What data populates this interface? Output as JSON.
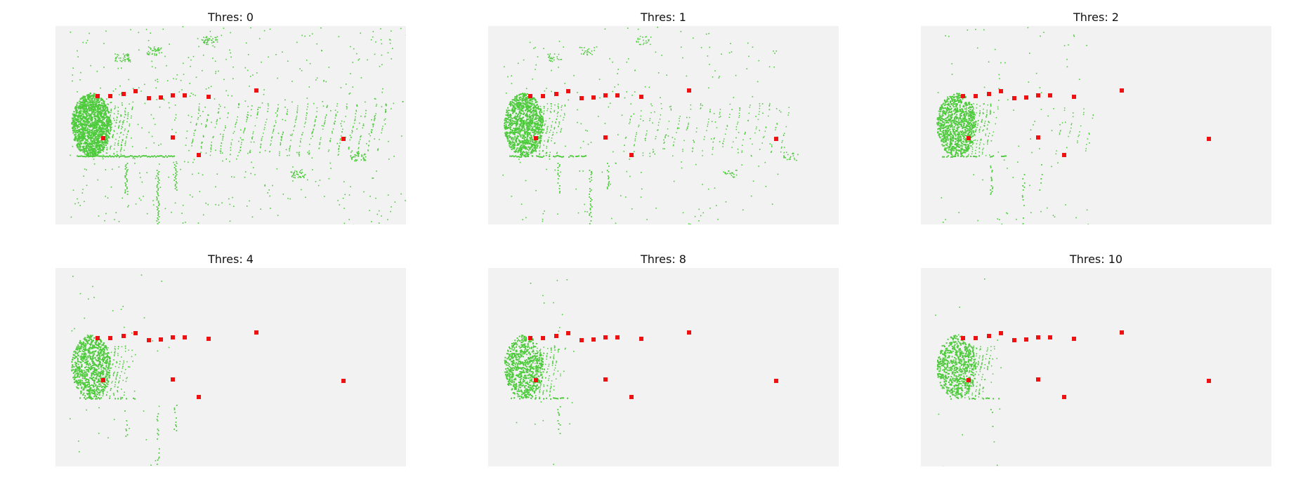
{
  "figure": {
    "background": "#ffffff",
    "plot_background": "#f2f2f2",
    "point_color": "#4ecb3c",
    "marker_color": "#ee1111"
  },
  "chart_data": [
    {
      "type": "scatter",
      "title": "Thres: 0",
      "threshold": 0,
      "axes": "off",
      "grid": false,
      "series": [
        {
          "values": "green lidar point cloud",
          "density": 1.0,
          "range": 1.0,
          "far_clusters": true
        },
        {
          "values": "red object markers",
          "x": [
            60,
            78,
            97,
            114,
            133,
            150,
            167,
            184,
            218,
            286,
            68,
            167,
            204,
            410
          ],
          "y": [
            100,
            100,
            97,
            93,
            103,
            102,
            99,
            99,
            101,
            92,
            160,
            159,
            184,
            161
          ]
        }
      ]
    },
    {
      "type": "scatter",
      "title": "Thres: 1",
      "threshold": 1,
      "axes": "off",
      "grid": false,
      "series": [
        {
          "values": "green lidar point cloud",
          "density": 0.55,
          "range": 0.85,
          "far_clusters": true
        },
        {
          "values": "red object markers",
          "x": [
            60,
            78,
            97,
            114,
            133,
            150,
            167,
            184,
            218,
            286,
            68,
            167,
            204,
            410
          ],
          "y": [
            100,
            100,
            97,
            93,
            103,
            102,
            99,
            99,
            101,
            92,
            160,
            159,
            184,
            161
          ]
        }
      ]
    },
    {
      "type": "scatter",
      "title": "Thres: 2",
      "threshold": 2,
      "axes": "off",
      "grid": false,
      "series": [
        {
          "values": "green lidar point cloud",
          "density": 0.4,
          "range": 0.45,
          "far_clusters": false
        },
        {
          "values": "red object markers",
          "x": [
            60,
            78,
            97,
            114,
            133,
            150,
            167,
            184,
            218,
            286,
            68,
            167,
            204,
            410
          ],
          "y": [
            100,
            100,
            97,
            93,
            103,
            102,
            99,
            99,
            101,
            92,
            160,
            159,
            184,
            161
          ]
        }
      ]
    },
    {
      "type": "scatter",
      "title": "Thres: 4",
      "threshold": 4,
      "axes": "off",
      "grid": false,
      "series": [
        {
          "values": "green lidar point cloud",
          "density": 0.3,
          "range": 0.28,
          "far_clusters": false
        },
        {
          "values": "red object markers",
          "x": [
            60,
            78,
            97,
            114,
            133,
            150,
            167,
            184,
            218,
            286,
            68,
            167,
            204,
            410
          ],
          "y": [
            100,
            100,
            97,
            93,
            103,
            102,
            99,
            99,
            101,
            92,
            160,
            159,
            184,
            161
          ]
        }
      ]
    },
    {
      "type": "scatter",
      "title": "Thres: 8",
      "threshold": 8,
      "axes": "off",
      "grid": false,
      "series": [
        {
          "values": "green lidar point cloud",
          "density": 0.2,
          "range": 0.2,
          "far_clusters": false
        },
        {
          "values": "red object markers",
          "x": [
            60,
            78,
            97,
            114,
            133,
            150,
            167,
            184,
            218,
            286,
            68,
            167,
            204,
            410
          ],
          "y": [
            100,
            100,
            97,
            93,
            103,
            102,
            99,
            99,
            101,
            92,
            160,
            159,
            184,
            161
          ]
        }
      ]
    },
    {
      "type": "scatter",
      "title": "Thres: 10",
      "threshold": 10,
      "axes": "off",
      "grid": false,
      "series": [
        {
          "values": "green lidar point cloud",
          "density": 0.15,
          "range": 0.18,
          "far_clusters": false
        },
        {
          "values": "red object markers",
          "x": [
            60,
            78,
            97,
            114,
            133,
            150,
            167,
            184,
            218,
            286,
            68,
            167,
            204,
            410
          ],
          "y": [
            100,
            100,
            97,
            93,
            103,
            102,
            99,
            99,
            101,
            92,
            160,
            159,
            184,
            161
          ]
        }
      ]
    }
  ]
}
